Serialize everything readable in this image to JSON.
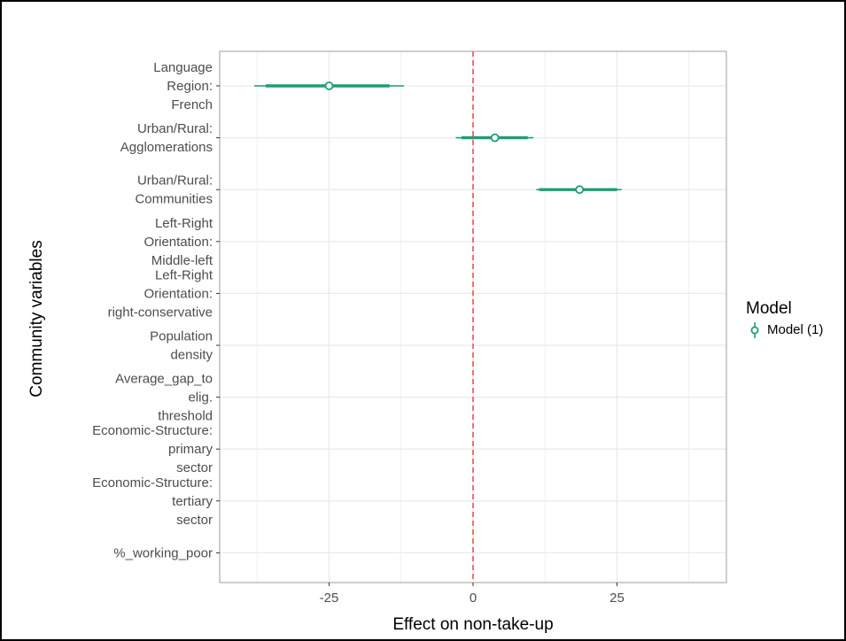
{
  "colors": {
    "series": "#1b9e77",
    "reference_line": "#e8553e",
    "grid": "#ebebeb",
    "panel_border": "#9e9e9e",
    "tick_text": "#4d4d4d"
  },
  "chart_data": {
    "type": "scatter",
    "title": "",
    "xlabel": "Effect on non-take-up",
    "ylabel": "Community variables",
    "xlim": [
      -44,
      44
    ],
    "x_ticks": [
      -25,
      0,
      25
    ],
    "x_tick_labels": [
      "-25",
      "0",
      "25"
    ],
    "reference_x": 0,
    "grid": true,
    "legend": {
      "title": "Model",
      "placement": "right"
    },
    "categories": [
      "Language\nRegion:\nFrench",
      "Urban/Rural:\nAgglomerations",
      "Urban/Rural:\nCommunities",
      "Left-Right\nOrientation:\nMiddle-left",
      "Left-Right\nOrientation:\nright-conservative",
      "Population\ndensity",
      "Average_gap_to\nelig.\nthreshold",
      "Economic-Structure:\nprimary\nsector",
      "Economic-Structure:\ntertiary\nsector",
      "%_working_poor"
    ],
    "series": [
      {
        "name": "Model (1)",
        "points": [
          {
            "category": 0,
            "estimate": -25.0,
            "ci_inner": [
              -36.0,
              -14.5
            ],
            "ci_outer": [
              -38.0,
              -12.0
            ]
          },
          {
            "category": 1,
            "estimate": 3.8,
            "ci_inner": [
              -2.0,
              9.5
            ],
            "ci_outer": [
              -3.0,
              10.5
            ]
          },
          {
            "category": 2,
            "estimate": 18.5,
            "ci_inner": [
              11.5,
              25.0
            ],
            "ci_outer": [
              11.0,
              25.8
            ]
          }
        ]
      }
    ]
  }
}
